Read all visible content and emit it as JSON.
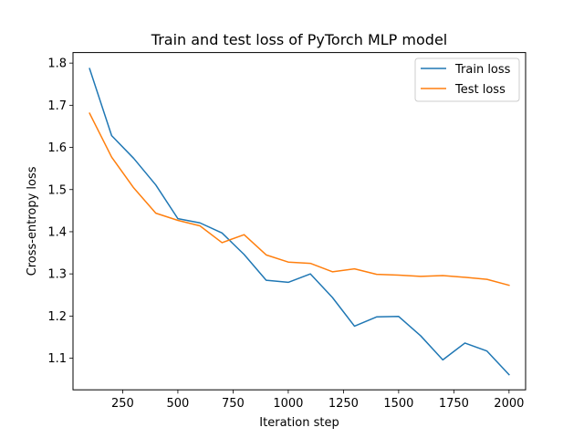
{
  "chart_data": {
    "type": "line",
    "title": "Train and test loss of PyTorch MLP model",
    "xlabel": "Iteration step",
    "ylabel": "Cross-entropy loss",
    "xlim": [
      25,
      2075
    ],
    "ylim": [
      1.025,
      1.825
    ],
    "xticks": [
      250,
      500,
      750,
      1000,
      1250,
      1500,
      1750,
      2000
    ],
    "yticks": [
      1.1,
      1.2,
      1.3,
      1.4,
      1.5,
      1.6,
      1.7,
      1.8
    ],
    "grid": false,
    "legend_position": "upper right",
    "x": [
      100,
      200,
      300,
      400,
      500,
      600,
      700,
      800,
      900,
      1000,
      1100,
      1200,
      1300,
      1400,
      1500,
      1600,
      1700,
      1800,
      1900,
      2000
    ],
    "series": [
      {
        "name": "Train loss",
        "color": "#1f77b4",
        "values": [
          1.787,
          1.628,
          1.574,
          1.511,
          1.431,
          1.421,
          1.397,
          1.346,
          1.285,
          1.28,
          1.3,
          1.244,
          1.176,
          1.198,
          1.199,
          1.153,
          1.096,
          1.136,
          1.117,
          1.061
        ]
      },
      {
        "name": "Test loss",
        "color": "#ff7f0e",
        "values": [
          1.681,
          1.577,
          1.504,
          1.444,
          1.427,
          1.414,
          1.374,
          1.393,
          1.345,
          1.328,
          1.325,
          1.305,
          1.312,
          1.299,
          1.297,
          1.294,
          1.296,
          1.292,
          1.287,
          1.273
        ]
      }
    ]
  }
}
